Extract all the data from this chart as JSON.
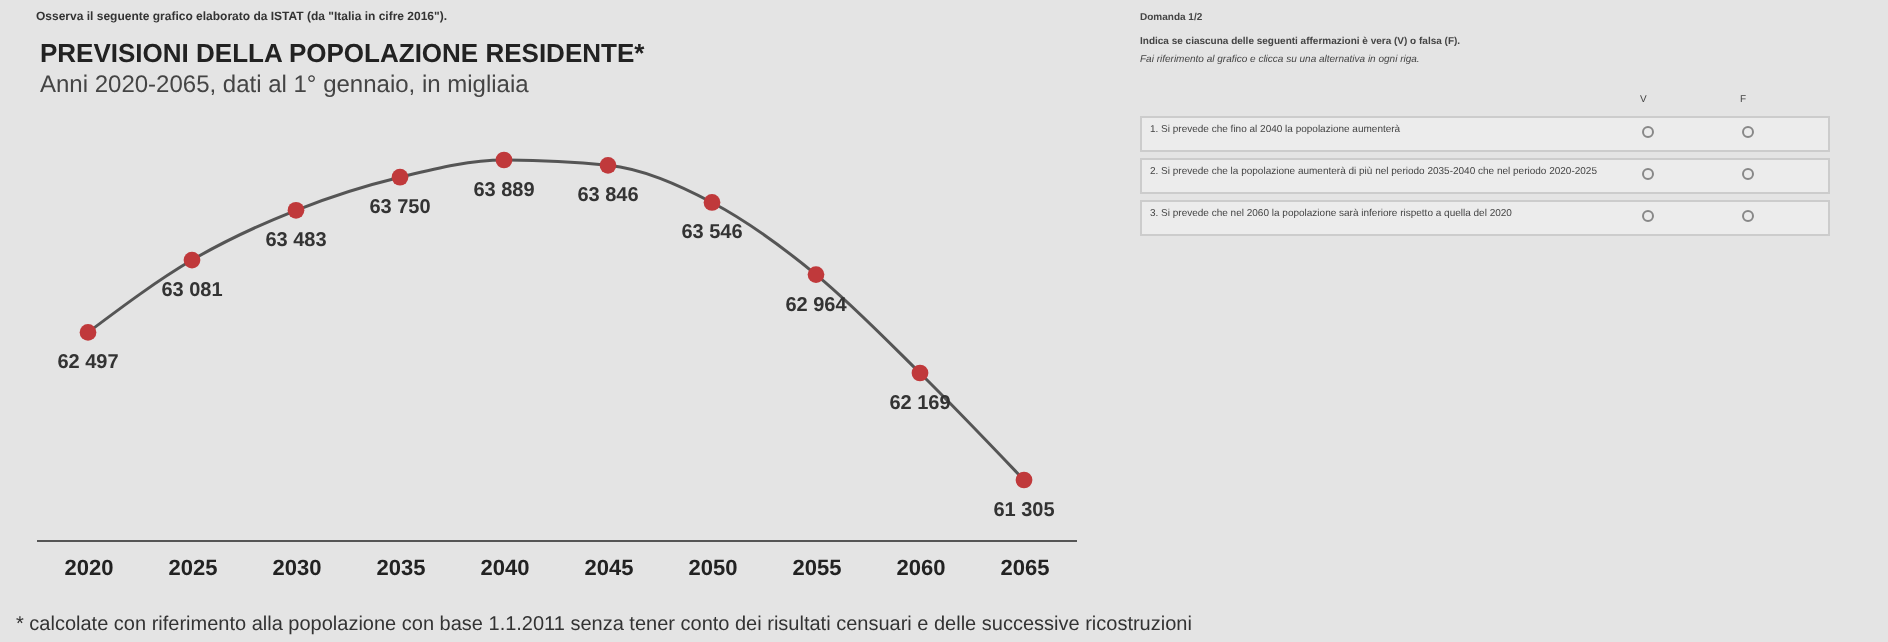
{
  "chart_data": {
    "type": "line",
    "title": "PREVISIONI DELLA POPOLAZIONE RESIDENTE*",
    "subtitle": "Anni 2020-2065, dati al 1° gennaio, in migliaia",
    "categories": [
      "2020",
      "2025",
      "2030",
      "2035",
      "2040",
      "2045",
      "2050",
      "2055",
      "2060",
      "2065"
    ],
    "series": [
      {
        "color": "#c0393b",
        "values": [
          62497,
          63081,
          63483,
          63750,
          63889,
          63846,
          63546,
          62964,
          62169,
          61305
        ],
        "value_labels": [
          "62 497",
          "63 081",
          "63 483",
          "63 750",
          "63 889",
          "63 846",
          "63 546",
          "62 964",
          "62 169",
          "61 305"
        ]
      }
    ],
    "marker": "circle",
    "grid": false,
    "annotations": [
      "Osserva il seguente grafico elaborato da ISTAT (da \"Italia in cifre 2016\").",
      "* calcolate con riferimento alla popolazione con base 1.1.2011 senza tener conto dei risultati censuari e delle successive ricostruzioni",
      "Domanda 1/2",
      "Indica se ciascuna delle seguenti affermazioni è vera (V) o falsa (F).",
      "Fai riferimento al grafico e clicca su una alternativa in ogni riga.",
      "V",
      "F",
      "1. Si prevede che fino al 2040 la popolazione aumenterà",
      "2. Si prevede che la popolazione aumenterà di più nel periodo 2035-2040 che nel periodo 2020-2025",
      "3. Si prevede che nel 2060 la popolazione sarà inferiore rispetto a quella del 2020"
    ]
  }
}
